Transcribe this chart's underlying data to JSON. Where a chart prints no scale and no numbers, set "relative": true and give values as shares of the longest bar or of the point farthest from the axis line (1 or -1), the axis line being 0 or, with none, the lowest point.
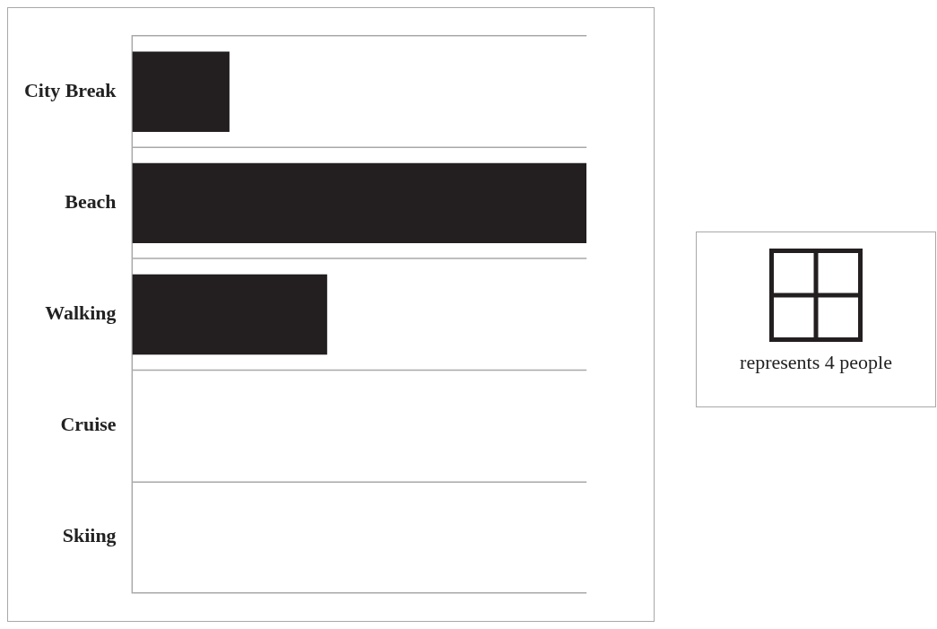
{
  "chart_data": {
    "type": "bar",
    "orientation": "horizontal",
    "relative": true,
    "categories": [
      "City Break",
      "Beach",
      "Walking",
      "Cruise",
      "Skiing"
    ],
    "values": [
      0.214,
      1,
      0.429,
      null,
      null
    ],
    "color": "#231f20",
    "grid": "y",
    "annotations": [
      "represents 4 people"
    ]
  }
}
